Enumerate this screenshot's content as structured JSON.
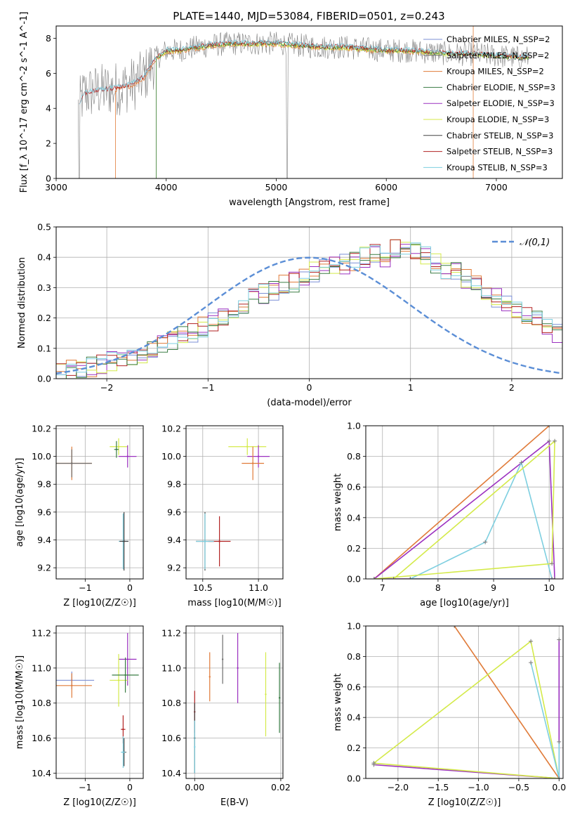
{
  "title": "PLATE=1440, MJD=53084, FIBERID=0501, z=0.243",
  "colors": {
    "chabrier_miles": "#7b8fd6",
    "salpeter_miles": "#6e6e6e",
    "kroupa_miles": "#e07b39",
    "chabrier_elodie": "#3a7d44",
    "salpeter_elodie": "#9b30c0",
    "kroupa_elodie": "#d4ea4a",
    "chabrier_stelib": "#444444",
    "salpeter_stelib": "#b22222",
    "kroupa_stelib": "#7ecfe0",
    "data": "#808080",
    "gaussian": "#5b8ed6",
    "grid": "#b0b0b0"
  },
  "chart_data": [
    {
      "panel": "spectrum",
      "type": "line",
      "xlabel": "wavelength [Angstrom, rest frame]",
      "ylabel": "Flux [f_λ 10^-17 erg cm^-2 s^-1 A^-1]",
      "xlim": [
        3000,
        7600
      ],
      "ylim": [
        0,
        8.7
      ],
      "xticks": [
        3000,
        4000,
        5000,
        6000,
        7000
      ],
      "yticks": [
        0,
        2,
        4,
        6,
        8
      ],
      "legend_placement": "right",
      "legend": [
        "Chabrier MILES, N_SSP=2",
        "Salpeter MILES, N_SSP=2",
        "Kroupa MILES, N_SSP=2",
        "Chabrier ELODIE, N_SSP=3",
        "Salpeter ELODIE, N_SSP=3",
        "Kroupa ELODIE, N_SSP=3",
        "Chabrier STELIB, N_SSP=3",
        "Salpeter STELIB, N_SSP=3",
        "Kroupa STELIB, N_SSP=3"
      ],
      "model_x": [
        3200,
        3250,
        3300,
        3400,
        3500,
        3600,
        3700,
        3800,
        3900,
        4000,
        4100,
        4200,
        4400,
        4600,
        4800,
        5000,
        5200,
        5400,
        5600,
        5800,
        6000,
        6200,
        6400,
        6600,
        6800,
        7000,
        7200,
        7300
      ],
      "model_y": [
        4.0,
        4.8,
        4.9,
        5.0,
        5.1,
        5.2,
        5.4,
        5.8,
        6.8,
        7.3,
        7.3,
        7.4,
        7.6,
        7.7,
        7.7,
        7.7,
        7.6,
        7.5,
        7.5,
        7.4,
        7.3,
        7.3,
        7.2,
        7.1,
        7.1,
        7.0,
        6.9,
        6.9
      ]
    },
    {
      "panel": "residual_histogram",
      "type": "line",
      "xlabel": "(data-model)/error",
      "ylabel": "Normed distribution",
      "xlim": [
        -2.5,
        2.5
      ],
      "ylim": [
        0,
        0.5
      ],
      "xticks": [
        -2,
        -1,
        0,
        1,
        2
      ],
      "yticks": [
        0.0,
        0.1,
        0.2,
        0.3,
        0.4,
        0.5
      ],
      "legend": [
        "𝒩(0,1)"
      ],
      "legend_placement": "top-right",
      "bin_width": 0.1,
      "bins_start": -2.5,
      "hist_values": [
        0.02,
        0.03,
        0.03,
        0.04,
        0.05,
        0.06,
        0.06,
        0.07,
        0.08,
        0.1,
        0.11,
        0.12,
        0.14,
        0.15,
        0.17,
        0.19,
        0.2,
        0.22,
        0.24,
        0.27,
        0.28,
        0.29,
        0.31,
        0.32,
        0.34,
        0.35,
        0.36,
        0.37,
        0.38,
        0.39,
        0.4,
        0.41,
        0.4,
        0.43,
        0.44,
        0.42,
        0.4,
        0.38,
        0.36,
        0.35,
        0.33,
        0.31,
        0.29,
        0.27,
        0.25,
        0.23,
        0.21,
        0.19,
        0.17,
        0.15
      ],
      "gaussian": {
        "mu": 0,
        "sigma": 1
      }
    },
    {
      "panel": "age_vs_Z",
      "type": "scatter",
      "xlabel": "Z [log10(Z/Z☉)]",
      "ylabel": "age [log10(age/yr)]",
      "xlim": [
        -1.65,
        0.3
      ],
      "ylim": [
        9.12,
        10.22
      ],
      "xticks": [
        -1,
        0
      ],
      "yticks": [
        9.2,
        9.4,
        9.6,
        9.8,
        10.0,
        10.2
      ],
      "points": [
        {
          "series": "kroupa_miles",
          "x": -1.3,
          "xerr": 0.45,
          "y": 9.95,
          "yerr": 0.12
        },
        {
          "series": "salpeter_miles",
          "x": -1.3,
          "xerr": 0.45,
          "y": 9.95,
          "yerr": 0.1
        },
        {
          "series": "kroupa_elodie",
          "x": -0.25,
          "xerr": 0.2,
          "y": 10.07,
          "yerr": 0.06
        },
        {
          "series": "salpeter_elodie",
          "x": -0.05,
          "xerr": 0.2,
          "y": 10.0,
          "yerr": 0.08
        },
        {
          "series": "chabrier_elodie",
          "x": -0.3,
          "xerr": 0.05,
          "y": 10.05,
          "yerr": 0.06
        },
        {
          "series": "kroupa_stelib",
          "x": -0.15,
          "xerr": 0.1,
          "y": 9.39,
          "yerr": 0.2
        },
        {
          "series": "chabrier_stelib",
          "x": -0.13,
          "xerr": 0.1,
          "y": 9.39,
          "yerr": 0.21
        }
      ]
    },
    {
      "panel": "age_vs_mass",
      "type": "scatter",
      "xlabel": "mass [log10(M/M☉)]",
      "ylabel": "",
      "xlim": [
        10.35,
        11.22
      ],
      "ylim": [
        9.12,
        10.22
      ],
      "xticks": [
        10.5,
        11.0
      ],
      "yticks": [
        9.2,
        9.4,
        9.6,
        9.8,
        10.0,
        10.2
      ],
      "points": [
        {
          "series": "kroupa_elodie",
          "x": 10.9,
          "xerr": 0.17,
          "y": 10.07,
          "yerr": 0.06
        },
        {
          "series": "salpeter_elodie",
          "x": 11.0,
          "xerr": 0.1,
          "y": 10.0,
          "yerr": 0.08
        },
        {
          "series": "kroupa_miles",
          "x": 10.95,
          "xerr": 0.1,
          "y": 9.95,
          "yerr": 0.12
        },
        {
          "series": "chabrier_stelib",
          "x": 10.52,
          "xerr": 0.08,
          "y": 9.39,
          "yerr": 0.21
        },
        {
          "series": "salpeter_stelib",
          "x": 10.65,
          "xerr": 0.1,
          "y": 9.39,
          "yerr": 0.18
        },
        {
          "series": "kroupa_stelib",
          "x": 10.52,
          "xerr": 0.08,
          "y": 9.39,
          "yerr": 0.2
        }
      ]
    },
    {
      "panel": "massweight_vs_age",
      "type": "line",
      "xlabel": "age [log10(age/yr)]",
      "ylabel": "mass weight",
      "xlim": [
        6.7,
        10.25
      ],
      "ylim": [
        0,
        1.0
      ],
      "xticks": [
        7,
        8,
        9,
        10
      ],
      "yticks": [
        0.0,
        0.2,
        0.4,
        0.6,
        0.8,
        1.0
      ],
      "series": [
        {
          "key": "kroupa_miles",
          "x": [
            6.85,
            10.0
          ],
          "y": [
            0.0,
            1.0
          ]
        },
        {
          "key": "salpeter_elodie",
          "x": [
            6.85,
            10.0,
            10.1,
            6.85
          ],
          "y": [
            0.0,
            0.9,
            0.0,
            0.0
          ]
        },
        {
          "key": "kroupa_stelib",
          "x": [
            7.5,
            8.85,
            9.5,
            10.05,
            7.5
          ],
          "y": [
            0.0,
            0.24,
            0.76,
            0.0,
            0.0
          ]
        },
        {
          "key": "kroupa_elodie",
          "x": [
            6.85,
            10.05,
            10.1,
            7.2
          ],
          "y": [
            0.0,
            0.1,
            0.9,
            0.0
          ]
        }
      ]
    },
    {
      "panel": "mass_vs_Z",
      "type": "scatter",
      "xlabel": "Z [log10(Z/Z☉)]",
      "ylabel": "mass [log10(M/M☉)]",
      "xlim": [
        -1.65,
        0.3
      ],
      "ylim": [
        10.37,
        11.24
      ],
      "xticks": [
        -1,
        0
      ],
      "yticks": [
        10.4,
        10.6,
        10.8,
        11.0,
        11.2
      ],
      "points": [
        {
          "series": "chabrier_miles",
          "x": -1.3,
          "xerr": 0.5,
          "y": 10.93,
          "yerr": 0.05
        },
        {
          "series": "kroupa_miles",
          "x": -1.3,
          "xerr": 0.45,
          "y": 10.9,
          "yerr": 0.07
        },
        {
          "series": "salpeter_elodie",
          "x": -0.05,
          "xerr": 0.2,
          "y": 11.05,
          "yerr": 0.15
        },
        {
          "series": "kroupa_elodie",
          "x": -0.25,
          "xerr": 0.2,
          "y": 10.93,
          "yerr": 0.15
        },
        {
          "series": "chabrier_elodie",
          "x": -0.1,
          "xerr": 0.3,
          "y": 10.96,
          "yerr": 0.1
        },
        {
          "series": "salpeter_stelib",
          "x": -0.15,
          "xerr": 0.05,
          "y": 10.65,
          "yerr": 0.08
        },
        {
          "series": "chabrier_stelib",
          "x": -0.13,
          "xerr": 0.05,
          "y": 10.52,
          "yerr": 0.08
        },
        {
          "series": "kroupa_stelib",
          "x": -0.15,
          "xerr": 0.05,
          "y": 10.52,
          "yerr": 0.09
        }
      ]
    },
    {
      "panel": "mass_vs_ebv",
      "type": "scatter",
      "xlabel": "E(B-V)",
      "ylabel": "",
      "xlim": [
        -0.002,
        0.0205
      ],
      "ylim": [
        10.37,
        11.24
      ],
      "xticks": [
        0.0,
        0.02
      ],
      "yticks": [
        10.4,
        10.6,
        10.8,
        11.0,
        11.2
      ],
      "points": [
        {
          "series": "kroupa_miles",
          "x": 0.0035,
          "xerr": 0,
          "y": 10.95,
          "yerr": 0.14
        },
        {
          "series": "salpeter_miles",
          "x": 0.0065,
          "xerr": 0,
          "y": 11.05,
          "yerr": 0.14
        },
        {
          "series": "salpeter_elodie",
          "x": 0.01,
          "xerr": 0,
          "y": 11.0,
          "yerr": 0.2
        },
        {
          "series": "kroupa_elodie",
          "x": 0.0165,
          "xerr": 0,
          "y": 10.85,
          "yerr": 0.24
        },
        {
          "series": "chabrier_elodie",
          "x": 0.0197,
          "xerr": 0,
          "y": 10.83,
          "yerr": 0.2
        },
        {
          "series": "salpeter_stelib",
          "x": 0.0,
          "xerr": 0,
          "y": 10.75,
          "yerr": 0.12
        },
        {
          "series": "chabrier_stelib",
          "x": 0.0,
          "xerr": 0,
          "y": 10.6,
          "yerr": 0.2
        },
        {
          "series": "kroupa_stelib",
          "x": 0.0,
          "xerr": 0,
          "y": 10.55,
          "yerr": 0.15
        }
      ]
    },
    {
      "panel": "massweight_vs_Z",
      "type": "line",
      "xlabel": "Z [log10(Z/Z☉)]",
      "ylabel": "mass weight",
      "xlim": [
        -2.4,
        0.05
      ],
      "ylim": [
        0,
        1.0
      ],
      "xticks": [
        -2.0,
        -1.5,
        -1.0,
        -0.5,
        0.0
      ],
      "yticks": [
        0.0,
        0.2,
        0.4,
        0.6,
        0.8,
        1.0
      ],
      "series": [
        {
          "key": "kroupa_miles",
          "x": [
            -1.3,
            0.0
          ],
          "y": [
            1.0,
            0.0
          ]
        },
        {
          "key": "salpeter_elodie",
          "x": [
            -2.3,
            0.0,
            0.0
          ],
          "y": [
            0.09,
            0.0,
            0.91
          ]
        },
        {
          "key": "kroupa_elodie",
          "x": [
            -2.3,
            -0.35,
            0.0,
            -2.3
          ],
          "y": [
            0.1,
            0.9,
            0.0,
            0.1
          ]
        },
        {
          "key": "kroupa_stelib",
          "x": [
            -0.35,
            0.0,
            0.0
          ],
          "y": [
            0.76,
            0.0,
            0.24
          ]
        }
      ]
    }
  ]
}
